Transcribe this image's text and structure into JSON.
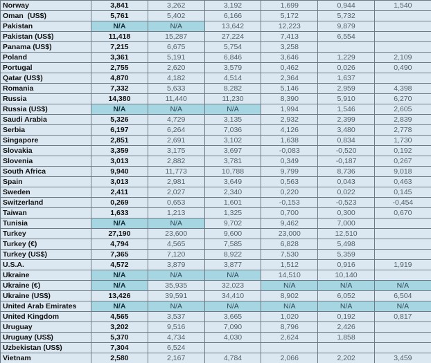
{
  "table": {
    "na_value": "N/A",
    "colors": {
      "cell_bg": "#dbe8f1",
      "na_highlight_bg": "#a6d6e2",
      "border": "#6d7a84",
      "country_text": "#111111",
      "value_text": "#55606a"
    },
    "rows": [
      {
        "label": "Norway",
        "values": [
          "3,841",
          "3,262",
          "3,192",
          "1,699",
          "0,944",
          "1,540"
        ]
      },
      {
        "label": "Oman  (US$)",
        "values": [
          "5,761",
          "5,402",
          "6,166",
          "5,172",
          "5,732",
          ""
        ]
      },
      {
        "label": "Pakistan",
        "values": [
          "N/A",
          "N/A",
          "13,642",
          "12,223",
          "9,879",
          ""
        ]
      },
      {
        "label": "Pakistan (US$)",
        "values": [
          "11,418",
          "15,287",
          "27,224",
          "7,413",
          "6,554",
          ""
        ]
      },
      {
        "label": "Panama (US$)",
        "values": [
          "7,215",
          "6,675",
          "5,754",
          "3,258",
          "",
          ""
        ]
      },
      {
        "label": "Poland",
        "values": [
          "3,361",
          "5,191",
          "6,846",
          "3,646",
          "1,229",
          "2,109"
        ]
      },
      {
        "label": "Portugal",
        "values": [
          "2,755",
          "2,620",
          "3,579",
          "0,462",
          "0,026",
          "0,490"
        ]
      },
      {
        "label": "Qatar (US$)",
        "values": [
          "4,870",
          "4,182",
          "4,514",
          "2,364",
          "1,637",
          ""
        ]
      },
      {
        "label": "Romania",
        "values": [
          "7,332",
          "5,633",
          "8,282",
          "5,146",
          "2,959",
          "4,398"
        ]
      },
      {
        "label": "Russia",
        "values": [
          "14,380",
          "11,440",
          "11,230",
          "8,390",
          "5,910",
          "6,270"
        ]
      },
      {
        "label": "Russia (US$)",
        "values": [
          "N/A",
          "N/A",
          "N/A",
          "1,994",
          "1,546",
          "2,605"
        ]
      },
      {
        "label": "Saudi Arabia",
        "values": [
          "5,326",
          "4,729",
          "3,135",
          "2,932",
          "2,399",
          "2,839"
        ]
      },
      {
        "label": "Serbia",
        "values": [
          "6,197",
          "6,264",
          "7,036",
          "4,126",
          "3,480",
          "2,778"
        ]
      },
      {
        "label": "Singapore",
        "values": [
          "2,851",
          "2,691",
          "3,102",
          "1,638",
          "0,834",
          "1,730"
        ]
      },
      {
        "label": "Slovakia",
        "values": [
          "3,359",
          "3,175",
          "3,697",
          "-0,083",
          "-0,520",
          "0,192"
        ]
      },
      {
        "label": "Slovenia",
        "values": [
          "3,013",
          "2,882",
          "3,781",
          "0,349",
          "-0,187",
          "0,267"
        ]
      },
      {
        "label": "South Africa",
        "values": [
          "9,940",
          "11,773",
          "10,788",
          "9,799",
          "8,736",
          "9,018"
        ]
      },
      {
        "label": "Spain",
        "values": [
          "3,013",
          "2,981",
          "3,649",
          "0,563",
          "0,043",
          "0,463"
        ]
      },
      {
        "label": "Sweden",
        "values": [
          "2,411",
          "2,027",
          "2,340",
          "0,220",
          "0,022",
          "0,145"
        ]
      },
      {
        "label": "Switzerland",
        "values": [
          "0,269",
          "0,653",
          "1,601",
          "-0,153",
          "-0,523",
          "-0,454"
        ]
      },
      {
        "label": "Taiwan",
        "values": [
          "1,633",
          "1,213",
          "1,325",
          "0,700",
          "0,300",
          "0,670"
        ]
      },
      {
        "label": "Tunisia",
        "values": [
          "N/A",
          "N/A",
          "9,702",
          "9,462",
          "7,000",
          ""
        ]
      },
      {
        "label": "Turkey",
        "values": [
          "27,190",
          "23,600",
          "9,600",
          "23,000",
          "12,510",
          ""
        ]
      },
      {
        "label": "Turkey (€)",
        "values": [
          "4,794",
          "4,565",
          "7,585",
          "6,828",
          "5,498",
          ""
        ]
      },
      {
        "label": "Turkey (US$)",
        "values": [
          "7,365",
          "7,120",
          "8,922",
          "7,530",
          "5,359",
          ""
        ]
      },
      {
        "label": "U.S.A.",
        "values": [
          "4,572",
          "3,879",
          "3,877",
          "1,512",
          "0,916",
          "1,919"
        ]
      },
      {
        "label": "Ukraine",
        "values": [
          "N/A",
          "N/A",
          "N/A",
          "14,510",
          "10,140",
          ""
        ]
      },
      {
        "label": "Ukraine (€)",
        "values": [
          "N/A",
          "35,935",
          "32,023",
          "N/A",
          "N/A",
          "N/A"
        ]
      },
      {
        "label": "Ukraine (US$)",
        "values": [
          "13,426",
          "39,591",
          "34,410",
          "8,902",
          "6,052",
          "6,504"
        ]
      },
      {
        "label": "United Arab Emirates",
        "values": [
          "N/A",
          "N/A",
          "N/A",
          "N/A",
          "N/A",
          "N/A"
        ]
      },
      {
        "label": "United Kingdom",
        "values": [
          "4,565",
          "3,537",
          "3,665",
          "1,020",
          "0,192",
          "0,817"
        ]
      },
      {
        "label": "Uruguay",
        "values": [
          "3,202",
          "9,516",
          "7,090",
          "8,796",
          "2,426",
          ""
        ]
      },
      {
        "label": "Uruguay (US$)",
        "values": [
          "5,370",
          "4,734",
          "4,030",
          "2,624",
          "1,858",
          ""
        ]
      },
      {
        "label": "Uzbekistan (US$)",
        "values": [
          "7,304",
          "6,524",
          "",
          "",
          "",
          ""
        ]
      },
      {
        "label": "Vietnam",
        "values": [
          "2,580",
          "2,167",
          "4,784",
          "2,066",
          "2,202",
          "3,459"
        ]
      }
    ]
  }
}
